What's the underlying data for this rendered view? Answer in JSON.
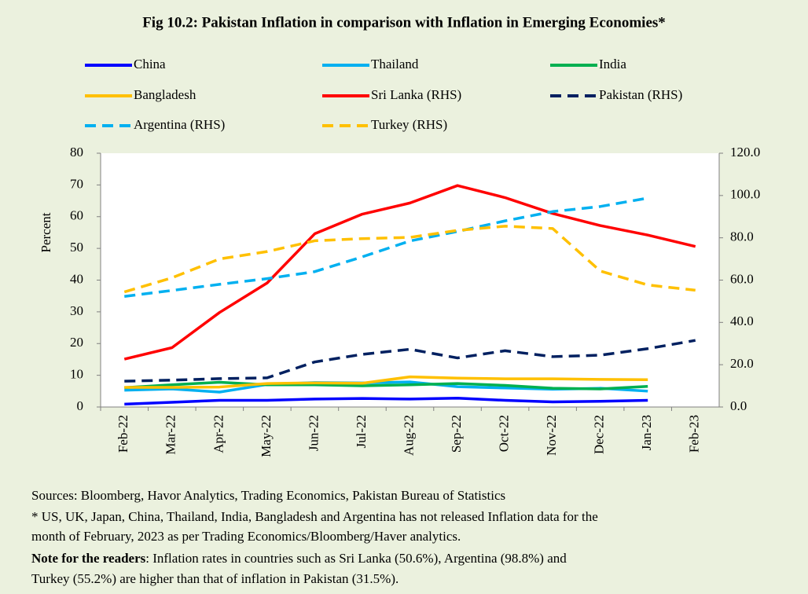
{
  "chart_data": {
    "type": "line",
    "title": "Fig 10.2: Pakistan Inflation in comparison with Inflation in Emerging Economies*",
    "ylabel": "Percent",
    "categories": [
      "Feb-22",
      "Mar-22",
      "Apr-22",
      "May-22",
      "Jun-22",
      "Jul-22",
      "Aug-22",
      "Sep-22",
      "Oct-22",
      "Nov-22",
      "Dec-22",
      "Jan-23",
      "Feb-23"
    ],
    "ylim": [
      0,
      80
    ],
    "yticks": [
      0,
      10,
      20,
      30,
      40,
      50,
      60,
      70,
      80
    ],
    "y2lim": [
      0,
      120
    ],
    "y2ticks": [
      {
        "value": 0,
        "label": "0.0"
      },
      {
        "value": 20,
        "label": "20.0"
      },
      {
        "value": 40,
        "label": "40.0"
      },
      {
        "value": 60,
        "label": "60.0"
      },
      {
        "value": 80,
        "label": "80.0"
      },
      {
        "value": 100,
        "label": "100.0"
      },
      {
        "value": 120,
        "label": "120.0"
      }
    ],
    "series": [
      {
        "name": "China",
        "color": "#0000ff",
        "dashed": false,
        "values": [
          0.9,
          1.5,
          2.1,
          2.1,
          2.5,
          2.7,
          2.5,
          2.8,
          2.1,
          1.6,
          1.8,
          2.1,
          null
        ]
      },
      {
        "name": "Thailand",
        "color": "#00b0f0",
        "dashed": false,
        "values": [
          5.3,
          5.7,
          4.7,
          7.1,
          7.7,
          7.6,
          7.9,
          6.4,
          6.0,
          5.6,
          5.9,
          5.0,
          null
        ]
      },
      {
        "name": "India",
        "color": "#00b050",
        "dashed": false,
        "values": [
          6.1,
          7.0,
          7.8,
          7.0,
          7.0,
          6.7,
          7.0,
          7.4,
          6.8,
          5.9,
          5.7,
          6.5,
          null
        ]
      },
      {
        "name": "Bangladesh",
        "color": "#ffc000",
        "dashed": false,
        "values": [
          6.2,
          6.2,
          6.3,
          7.4,
          7.6,
          7.5,
          9.5,
          9.1,
          8.9,
          8.9,
          8.7,
          8.6,
          null
        ]
      },
      {
        "name": "Sri Lanka  (RHS)",
        "color": "#ff0000",
        "dashed": false,
        "values": [
          15.1,
          18.7,
          29.8,
          39.1,
          54.6,
          60.8,
          64.3,
          69.8,
          66.0,
          61.0,
          57.2,
          54.2,
          50.6
        ]
      },
      {
        "name": "Pakistan (RHS)",
        "color": "#002060",
        "dashed": true,
        "axis": "y2",
        "values": [
          12.2,
          12.7,
          13.4,
          13.8,
          21.3,
          24.9,
          27.3,
          23.2,
          26.6,
          23.8,
          24.5,
          27.6,
          31.5
        ]
      },
      {
        "name": "Argentina (RHS)",
        "color": "#00b0f0",
        "dashed": true,
        "axis": "y2",
        "values": [
          52.3,
          55.1,
          58.0,
          60.7,
          64.0,
          71.0,
          78.5,
          83.0,
          88.0,
          92.4,
          94.8,
          98.8,
          null
        ]
      },
      {
        "name": "Turkey (RHS)",
        "color": "#ffc000",
        "dashed": true,
        "axis": "y2",
        "values": [
          54.4,
          61.1,
          70.0,
          73.5,
          78.6,
          79.6,
          80.2,
          83.5,
          85.5,
          84.4,
          64.3,
          57.7,
          55.2
        ]
      }
    ]
  },
  "footer": {
    "sources": "Sources: Bloomberg, Havor Analytics, Trading Economics, Pakistan Bureau of Statistics",
    "footnote_line1": "* US, UK, Japan, China, Thailand, India, Bangladesh and Argentina has not released  Inflation data for the",
    "footnote_line2": "month of February,  2023 as per Trading Economics/Bloomberg/Haver analytics.",
    "note_label": "Note for the readers",
    "note_line1": ": Inflation rates in countries such as Sri Lanka (50.6%), Argentina (98.8%) and",
    "note_line2": "Turkey (55.2%) are higher than that of inflation in Pakistan (31.5%)."
  }
}
